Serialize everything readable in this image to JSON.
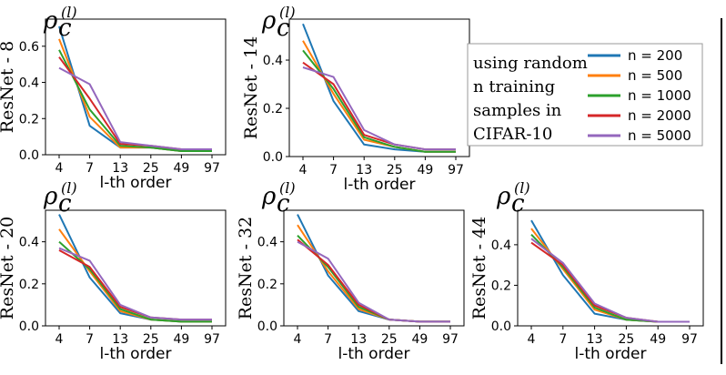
{
  "figure": {
    "rho_symbol": "ρ",
    "rho_subscript": "c",
    "rho_superscript": "(l)"
  },
  "legend": {
    "description_lines": [
      "using random",
      "n training",
      "samples in",
      "CIFAR-10"
    ]
  },
  "chart_data": [
    {
      "type": "line",
      "title": "ResNet - 8",
      "ylabel": "ResNet - 8",
      "xlabel": "l-th order",
      "categories": [
        "4",
        "7",
        "13",
        "25",
        "49",
        "97"
      ],
      "ylim": [
        0,
        0.75
      ],
      "yticks": [
        0.0,
        0.2,
        0.4,
        0.6
      ],
      "ytick_labels": [
        "0.0",
        "0.2",
        "0.4",
        "0.6"
      ],
      "series": [
        {
          "name": "n = 200",
          "color": "#1f77b4",
          "values": [
            0.71,
            0.16,
            0.04,
            0.04,
            0.02,
            0.02
          ]
        },
        {
          "name": "n = 500",
          "color": "#ff7f0e",
          "values": [
            0.64,
            0.21,
            0.04,
            0.04,
            0.02,
            0.02
          ]
        },
        {
          "name": "n = 1000",
          "color": "#2ca02c",
          "values": [
            0.58,
            0.25,
            0.05,
            0.04,
            0.02,
            0.02
          ]
        },
        {
          "name": "n = 2000",
          "color": "#d62728",
          "values": [
            0.54,
            0.31,
            0.06,
            0.05,
            0.03,
            0.03
          ]
        },
        {
          "name": "n = 5000",
          "color": "#9467bd",
          "values": [
            0.48,
            0.39,
            0.07,
            0.05,
            0.03,
            0.03
          ]
        }
      ]
    },
    {
      "type": "line",
      "title": "ResNet - 14",
      "ylabel": "ResNet - 14",
      "xlabel": "l-th order",
      "categories": [
        "4",
        "7",
        "13",
        "25",
        "49",
        "97"
      ],
      "ylim": [
        0,
        0.57
      ],
      "yticks": [
        0.0,
        0.2,
        0.4
      ],
      "ytick_labels": [
        "0.0",
        "0.2",
        "0.4"
      ],
      "series": [
        {
          "name": "n = 200",
          "color": "#1f77b4",
          "values": [
            0.55,
            0.23,
            0.05,
            0.03,
            0.02,
            0.02
          ]
        },
        {
          "name": "n = 500",
          "color": "#ff7f0e",
          "values": [
            0.48,
            0.26,
            0.07,
            0.04,
            0.02,
            0.02
          ]
        },
        {
          "name": "n = 1000",
          "color": "#2ca02c",
          "values": [
            0.44,
            0.28,
            0.08,
            0.04,
            0.02,
            0.02
          ]
        },
        {
          "name": "n = 2000",
          "color": "#d62728",
          "values": [
            0.39,
            0.3,
            0.09,
            0.05,
            0.03,
            0.03
          ]
        },
        {
          "name": "n = 5000",
          "color": "#9467bd",
          "values": [
            0.37,
            0.33,
            0.11,
            0.05,
            0.03,
            0.03
          ]
        }
      ]
    },
    {
      "type": "line",
      "title": "ResNet - 20",
      "ylabel": "ResNet - 20",
      "xlabel": "l-th order",
      "categories": [
        "4",
        "7",
        "13",
        "25",
        "49",
        "97"
      ],
      "ylim": [
        0,
        0.55
      ],
      "yticks": [
        0.0,
        0.2,
        0.4
      ],
      "ytick_labels": [
        "0.0",
        "0.2",
        "0.4"
      ],
      "series": [
        {
          "name": "n = 200",
          "color": "#1f77b4",
          "values": [
            0.53,
            0.23,
            0.06,
            0.03,
            0.02,
            0.02
          ]
        },
        {
          "name": "n = 500",
          "color": "#ff7f0e",
          "values": [
            0.46,
            0.26,
            0.07,
            0.03,
            0.02,
            0.02
          ]
        },
        {
          "name": "n = 1000",
          "color": "#2ca02c",
          "values": [
            0.4,
            0.27,
            0.08,
            0.03,
            0.02,
            0.02
          ]
        },
        {
          "name": "n = 2000",
          "color": "#d62728",
          "values": [
            0.36,
            0.28,
            0.09,
            0.04,
            0.03,
            0.03
          ]
        },
        {
          "name": "n = 5000",
          "color": "#9467bd",
          "values": [
            0.37,
            0.31,
            0.1,
            0.04,
            0.03,
            0.03
          ]
        }
      ]
    },
    {
      "type": "line",
      "title": "ResNet - 32",
      "ylabel": "ResNet - 32",
      "xlabel": "l-th order",
      "categories": [
        "4",
        "7",
        "13",
        "25",
        "49",
        "97"
      ],
      "ylim": [
        0,
        0.55
      ],
      "yticks": [
        0.0,
        0.2,
        0.4
      ],
      "ytick_labels": [
        "0.0",
        "0.2",
        "0.4"
      ],
      "series": [
        {
          "name": "n = 200",
          "color": "#1f77b4",
          "values": [
            0.53,
            0.24,
            0.07,
            0.03,
            0.02,
            0.02
          ]
        },
        {
          "name": "n = 500",
          "color": "#ff7f0e",
          "values": [
            0.48,
            0.26,
            0.08,
            0.03,
            0.02,
            0.02
          ]
        },
        {
          "name": "n = 1000",
          "color": "#2ca02c",
          "values": [
            0.43,
            0.28,
            0.09,
            0.03,
            0.02,
            0.02
          ]
        },
        {
          "name": "n = 2000",
          "color": "#d62728",
          "values": [
            0.41,
            0.29,
            0.1,
            0.03,
            0.02,
            0.02
          ]
        },
        {
          "name": "n = 5000",
          "color": "#9467bd",
          "values": [
            0.4,
            0.32,
            0.11,
            0.03,
            0.02,
            0.02
          ]
        }
      ]
    },
    {
      "type": "line",
      "title": "ResNet - 44",
      "ylabel": "ResNet - 44",
      "xlabel": "l-th order",
      "categories": [
        "4",
        "7",
        "13",
        "25",
        "49",
        "97"
      ],
      "ylim": [
        0,
        0.57
      ],
      "yticks": [
        0.0,
        0.2,
        0.4
      ],
      "ytick_labels": [
        "0.0",
        "0.2",
        "0.4"
      ],
      "series": [
        {
          "name": "n = 200",
          "color": "#1f77b4",
          "values": [
            0.52,
            0.25,
            0.06,
            0.03,
            0.02,
            0.02
          ]
        },
        {
          "name": "n = 500",
          "color": "#ff7f0e",
          "values": [
            0.48,
            0.28,
            0.08,
            0.03,
            0.02,
            0.02
          ]
        },
        {
          "name": "n = 1000",
          "color": "#2ca02c",
          "values": [
            0.45,
            0.29,
            0.09,
            0.03,
            0.02,
            0.02
          ]
        },
        {
          "name": "n = 2000",
          "color": "#d62728",
          "values": [
            0.41,
            0.3,
            0.1,
            0.04,
            0.02,
            0.02
          ]
        },
        {
          "name": "n = 5000",
          "color": "#9467bd",
          "values": [
            0.43,
            0.31,
            0.11,
            0.04,
            0.02,
            0.02
          ]
        }
      ]
    }
  ]
}
